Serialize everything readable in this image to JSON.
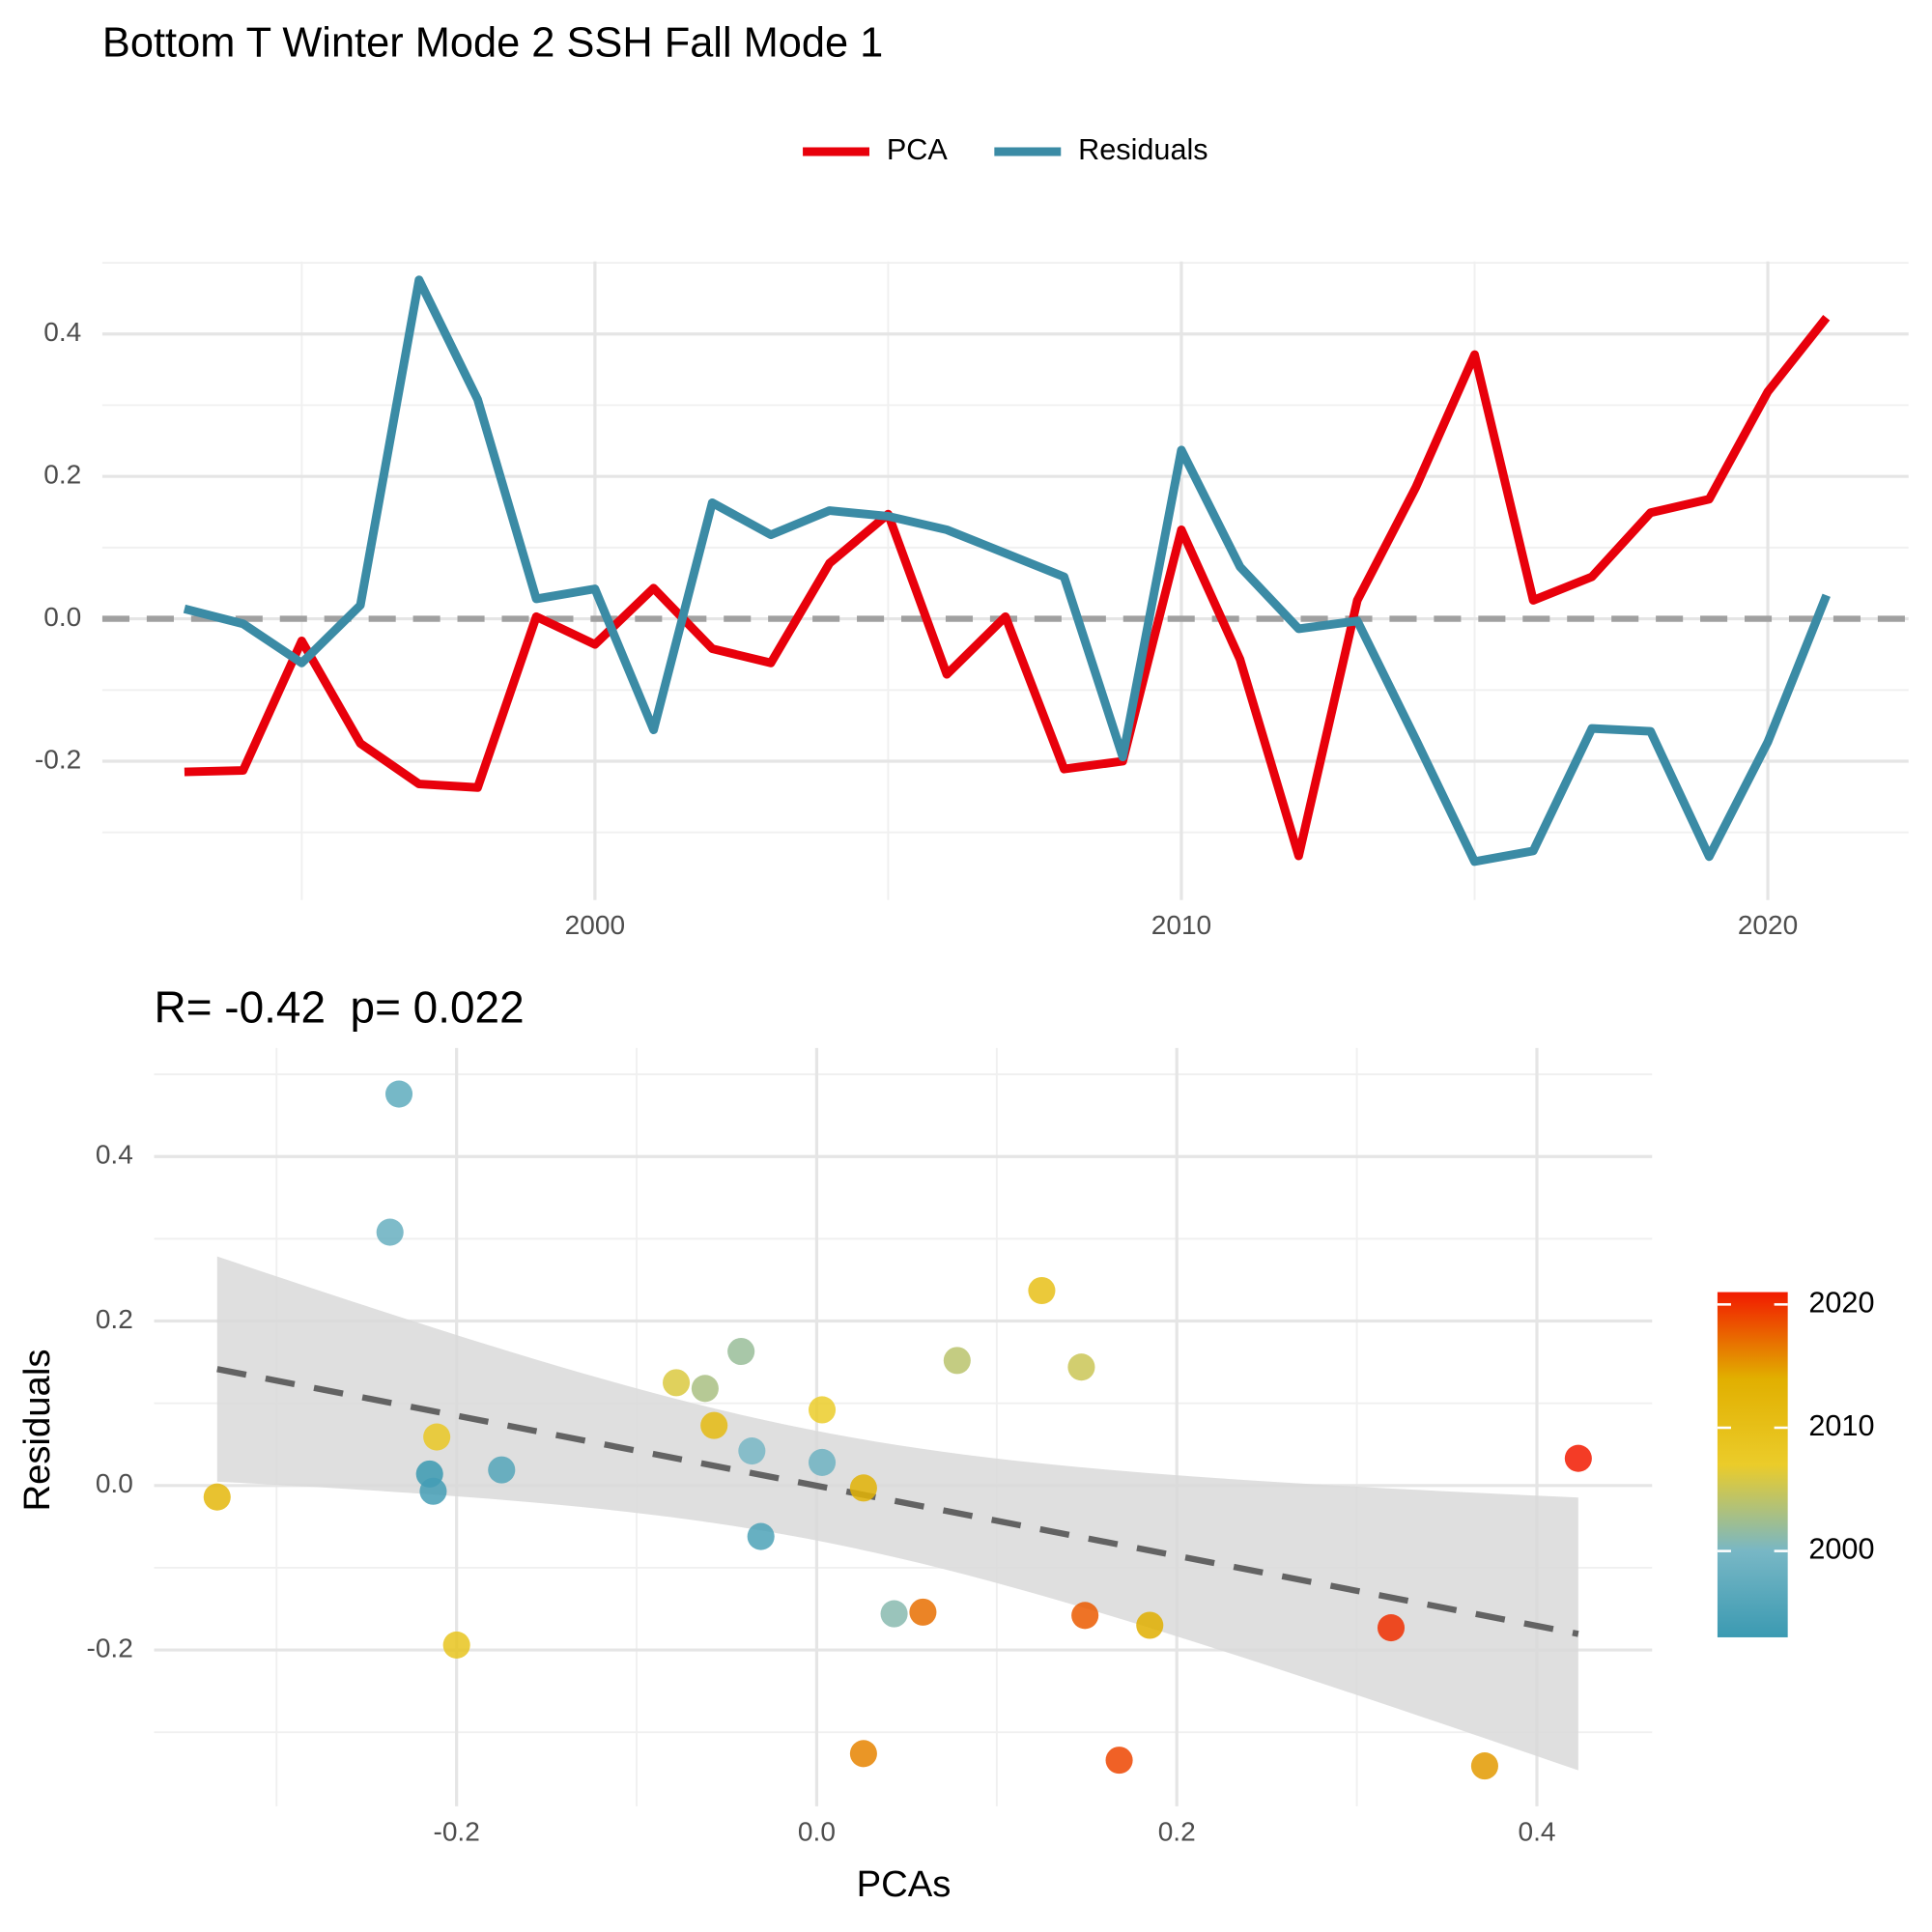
{
  "chart_data": [
    {
      "type": "line",
      "title": "Bottom T Winter Mode 2 SSH Fall Mode 1",
      "x": [
        1993,
        1994,
        1995,
        1996,
        1997,
        1998,
        1999,
        2000,
        2001,
        2002,
        2003,
        2004,
        2005,
        2006,
        2007,
        2008,
        2009,
        2010,
        2011,
        2012,
        2013,
        2014,
        2015,
        2016,
        2017,
        2018,
        2019,
        2020,
        2021
      ],
      "series": [
        {
          "name": "PCA",
          "color": "#e8000b",
          "values": [
            -0.215,
            -0.213,
            -0.031,
            -0.175,
            -0.232,
            -0.237,
            0.003,
            -0.036,
            0.043,
            -0.042,
            -0.062,
            0.078,
            0.147,
            -0.078,
            0.003,
            -0.211,
            -0.2,
            0.125,
            -0.057,
            -0.333,
            0.026,
            0.185,
            0.371,
            0.026,
            0.059,
            0.149,
            0.168,
            0.319,
            0.423
          ]
        },
        {
          "name": "Residuals",
          "color": "#3b8ba5",
          "values": [
            0.014,
            -0.007,
            -0.062,
            0.019,
            0.476,
            0.308,
            0.028,
            0.042,
            -0.156,
            0.163,
            0.118,
            0.152,
            0.144,
            0.125,
            0.092,
            0.059,
            -0.194,
            0.237,
            0.073,
            -0.014,
            -0.003,
            -0.17,
            -0.341,
            -0.326,
            -0.154,
            -0.158,
            -0.334,
            -0.173,
            0.033
          ]
        }
      ],
      "xlim": [
        1991.6,
        2022.4
      ],
      "xticks": [
        2000,
        2010,
        2020
      ],
      "ylim": [
        -0.395,
        0.502
      ],
      "yticks": [
        -0.2,
        {
          "value": 0,
          "label": "0.0"
        },
        0.2,
        0.4
      ],
      "reference_line": 0,
      "grid": true,
      "legend": "top"
    },
    {
      "type": "scatter",
      "title": "R= -0.42  p= 0.022",
      "x_label": "PCAs",
      "y_label": "Residuals",
      "x": [
        -0.215,
        -0.213,
        -0.031,
        -0.175,
        -0.232,
        -0.237,
        0.003,
        -0.036,
        0.043,
        -0.042,
        -0.062,
        0.078,
        0.147,
        -0.078,
        0.003,
        -0.211,
        -0.2,
        0.125,
        -0.057,
        -0.333,
        0.026,
        0.185,
        0.371,
        0.026,
        0.059,
        0.149,
        0.168,
        0.319,
        0.423
      ],
      "y": [
        0.014,
        -0.007,
        -0.062,
        0.019,
        0.476,
        0.308,
        0.028,
        0.042,
        -0.156,
        0.163,
        0.118,
        0.152,
        0.144,
        0.125,
        0.092,
        0.059,
        -0.194,
        0.237,
        0.073,
        -0.014,
        -0.003,
        -0.17,
        -0.341,
        -0.326,
        -0.154,
        -0.158,
        -0.334,
        -0.173,
        0.033
      ],
      "color_values": [
        1993,
        1994,
        1995,
        1996,
        1997,
        1998,
        1999,
        2000,
        2001,
        2002,
        2003,
        2004,
        2005,
        2006,
        2007,
        2008,
        2009,
        2010,
        2011,
        2012,
        2013,
        2014,
        2015,
        2016,
        2017,
        2018,
        2019,
        2020,
        2021
      ],
      "colorbar": {
        "colors": [
          "#3b9ab2",
          "#78b7c5",
          "#ebcc2a",
          "#e1af00",
          "#f21a00"
        ],
        "lim": [
          1993,
          2021
        ],
        "ticks": [
          2000,
          2010,
          2020
        ]
      },
      "xlim": [
        -0.368,
        0.464
      ],
      "xticks": [
        -0.2,
        {
          "value": 0,
          "label": "0.0"
        },
        0.2,
        0.4
      ],
      "ylim": [
        -0.39,
        0.532
      ],
      "yticks": [
        -0.2,
        {
          "value": 0,
          "label": "0.0"
        },
        0.2,
        0.4
      ],
      "grid": true,
      "fit": "lm"
    }
  ]
}
